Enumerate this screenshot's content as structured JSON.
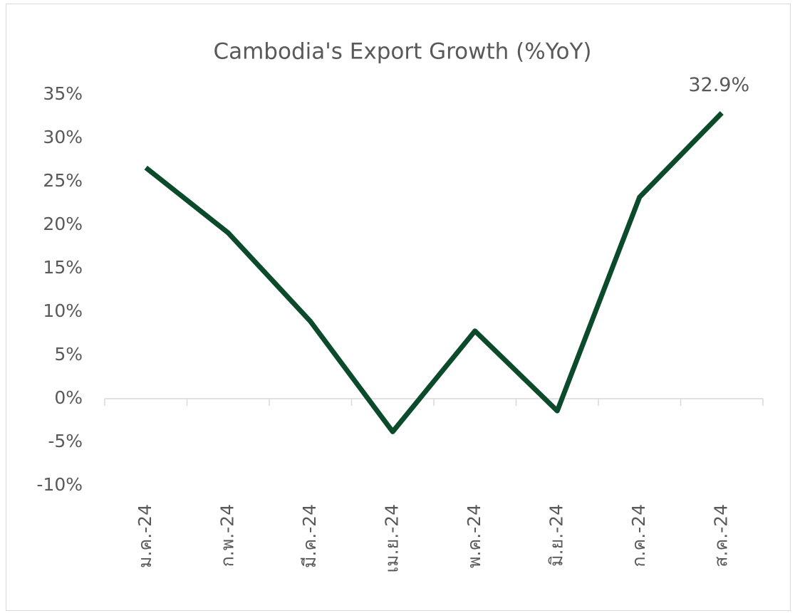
{
  "chart_data": {
    "type": "line",
    "title": "Cambodia's Export Growth (%YoY)",
    "categories": [
      "ม.ค.-24",
      "ก.พ.-24",
      "มี.ค.-24",
      "เม.ย.-24",
      "พ.ค.-24",
      "มิ.ย.-24",
      "ก.ค.-24",
      "ส.ค.-24"
    ],
    "series": [
      {
        "name": "Export Growth",
        "color": "#0b4a2b",
        "values": [
          26.6,
          19.1,
          8.9,
          -3.8,
          7.8,
          -1.4,
          23.2,
          32.9
        ],
        "value_labels": [
          null,
          null,
          null,
          null,
          null,
          null,
          null,
          "32.9%"
        ]
      }
    ],
    "ylim": [
      -10,
      35
    ],
    "yticks": [
      {
        "value": -10,
        "label": "-10%"
      },
      {
        "value": -5,
        "label": "-5%"
      },
      {
        "value": 0,
        "label": "0%"
      },
      {
        "value": 5,
        "label": "5%"
      },
      {
        "value": 10,
        "label": "10%"
      },
      {
        "value": 15,
        "label": "15%"
      },
      {
        "value": 20,
        "label": "20%"
      },
      {
        "value": 25,
        "label": "25%"
      },
      {
        "value": 30,
        "label": "30%"
      },
      {
        "value": 35,
        "label": "35%"
      }
    ],
    "grid": false
  }
}
